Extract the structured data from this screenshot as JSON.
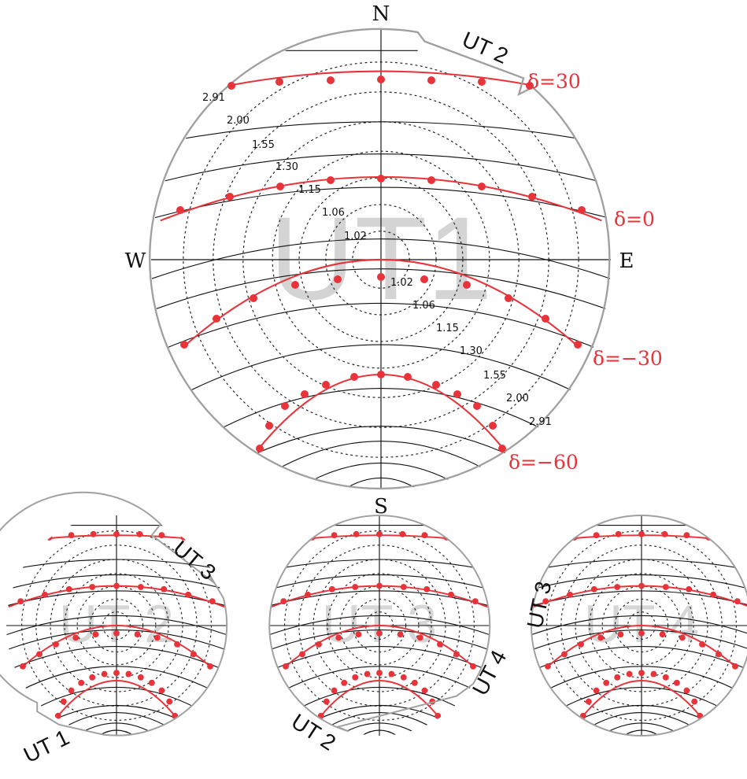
{
  "main_plot": {
    "telescope": "UT1",
    "compass": {
      "north": "N",
      "south": "S",
      "east": "E",
      "west": "W"
    },
    "neighbor_label": "UT 2",
    "declination_labels": [
      "δ=30",
      "δ=0",
      "δ=−30",
      "δ=−60"
    ],
    "airmass_labels": [
      "2.91",
      "2.00",
      "1.55",
      "1.30",
      "1.15",
      "1.06",
      "1.02"
    ]
  },
  "sub_plots": [
    {
      "telescope": "UT 2",
      "neighbor_labels": [
        "UT 3",
        "UT 1"
      ]
    },
    {
      "telescope": "UT 3",
      "neighbor_labels": [
        "UT 4",
        "UT 2"
      ]
    },
    {
      "telescope": "UT 4",
      "neighbor_labels": [
        "UT 3"
      ]
    }
  ],
  "colors": {
    "declination_track": "#e8333a",
    "horizon_circle": "#a0a0a0",
    "telescope_watermark": "#d4d4d4"
  }
}
